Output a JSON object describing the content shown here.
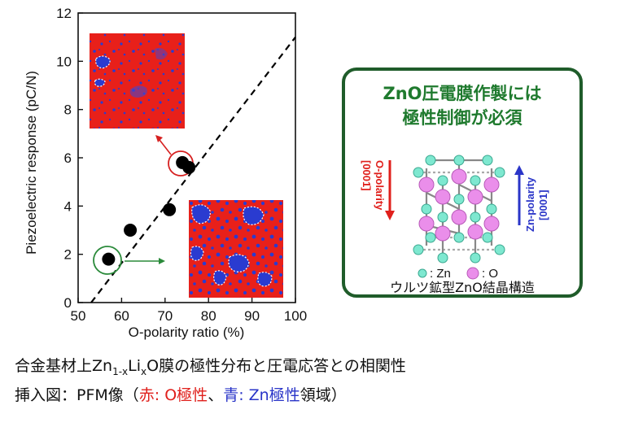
{
  "chart_data": {
    "type": "scatter",
    "xlabel": "O-polarity ratio (%)",
    "ylabel": "Piezoelectric response (pC/N)",
    "xlim": [
      50,
      100
    ],
    "ylim": [
      0,
      12
    ],
    "xticks": [
      50,
      60,
      70,
      80,
      90,
      100
    ],
    "yticks": [
      0,
      2,
      4,
      6,
      8,
      10,
      12
    ],
    "points": [
      {
        "x": 57,
        "y": 1.8
      },
      {
        "x": 62,
        "y": 3.0
      },
      {
        "x": 71,
        "y": 3.85
      },
      {
        "x": 74,
        "y": 5.8
      },
      {
        "x": 75.5,
        "y": 5.6
      }
    ],
    "trendline": {
      "style": "dashed",
      "from": [
        53,
        0
      ],
      "to": [
        100,
        11
      ]
    },
    "highlighted_points": [
      0,
      3
    ],
    "colors": {
      "points": "#000000",
      "trend": "#000000",
      "highlight_low": "#2a8a3a",
      "highlight_high": "#d62020"
    }
  },
  "infobox": {
    "title_line1": "ZnO圧電膜作製には",
    "title_line2": "極性制御が必須",
    "o_polarity_label": "O-polarity",
    "o_direction": "[0001̄]",
    "zn_polarity_label": "Zn-polarity",
    "zn_direction": "[0001]",
    "legend_zn": ": Zn",
    "legend_o": ": O",
    "structure_caption": "ウルツ鉱型ZnO結晶構造",
    "colors": {
      "border": "#1f5c2a",
      "title": "#1f7a2e",
      "zn": "#7ee8d0",
      "o": "#e890e8",
      "arrow_red": "#e0201c",
      "arrow_blue": "#2a35c8"
    }
  },
  "caption": {
    "line1_a": "合金基材上Zn",
    "line1_sub1": "1-x",
    "line1_b": "Li",
    "line1_sub2": "x",
    "line1_c": "O膜の極性分布と圧電応答との相関性",
    "line2_a": "挿入図：PFM像（",
    "line2_red": "赤: O極性",
    "line2_sep": "、",
    "line2_blue": "青: Zn極性",
    "line2_end": "領域）"
  },
  "inset_images": {
    "primary_color": "#e8201a",
    "secondary_color": "#2a3bd0"
  }
}
